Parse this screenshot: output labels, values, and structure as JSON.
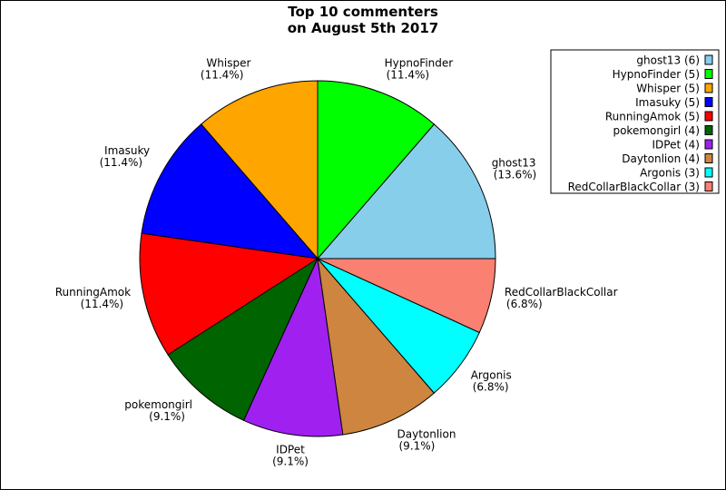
{
  "chart_data": {
    "type": "pie",
    "title": [
      "Top 10 commenters",
      "on August 5th 2017"
    ],
    "start_angle_deg": 0,
    "direction": "counterclockwise",
    "legend_position": "top-right",
    "slices": [
      {
        "name": "ghost13",
        "value": 6,
        "percent_label": "(13.6%)",
        "legend_label": "ghost13 (6)",
        "color": "#87CEEB"
      },
      {
        "name": "HypnoFinder",
        "value": 5,
        "percent_label": "(11.4%)",
        "legend_label": "HypnoFinder (5)",
        "color": "#00FF00"
      },
      {
        "name": "Whisper",
        "value": 5,
        "percent_label": "(11.4%)",
        "legend_label": "Whisper (5)",
        "color": "#FFA500"
      },
      {
        "name": "Imasuky",
        "value": 5,
        "percent_label": "(11.4%)",
        "legend_label": "Imasuky (5)",
        "color": "#0000FF"
      },
      {
        "name": "RunningAmok",
        "value": 5,
        "percent_label": "(11.4%)",
        "legend_label": "RunningAmok (5)",
        "color": "#FF0000"
      },
      {
        "name": "pokemongirl",
        "value": 4,
        "percent_label": "(9.1%)",
        "legend_label": "pokemongirl (4)",
        "color": "#006400"
      },
      {
        "name": "IDPet",
        "value": 4,
        "percent_label": "(9.1%)",
        "legend_label": "IDPet (4)",
        "color": "#A020F0"
      },
      {
        "name": "Daytonlion",
        "value": 4,
        "percent_label": "(9.1%)",
        "legend_label": "Daytonlion (4)",
        "color": "#CD853F"
      },
      {
        "name": "Argonis",
        "value": 3,
        "percent_label": "(6.8%)",
        "legend_label": "Argonis (3)",
        "color": "#00FFFF"
      },
      {
        "name": "RedCollarBlackCollar",
        "value": 3,
        "percent_label": "(6.8%)",
        "legend_label": "RedCollarBlackCollar (3)",
        "color": "#FA8072"
      }
    ]
  }
}
